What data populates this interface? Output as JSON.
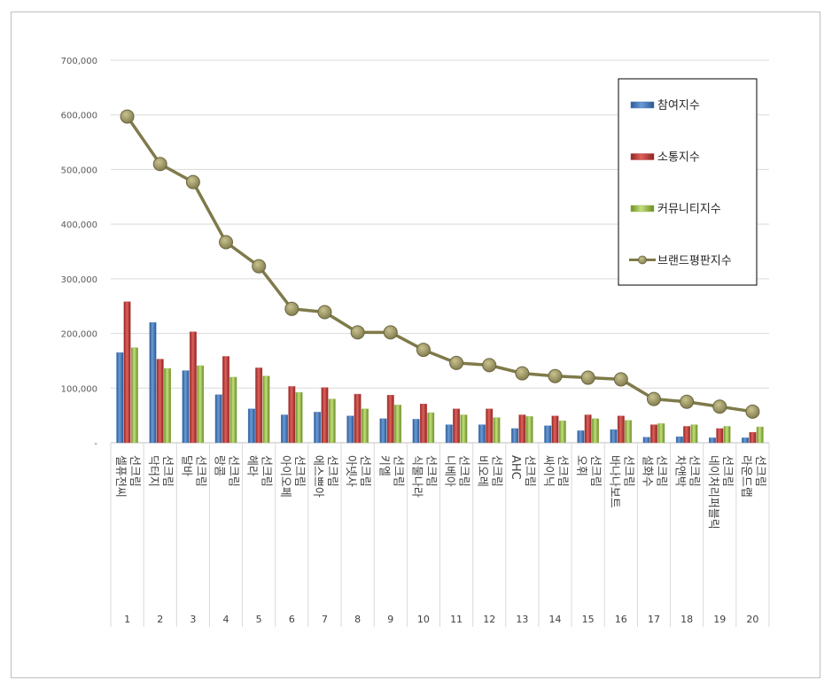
{
  "chart_data": {
    "type": "bar",
    "ylim": [
      0,
      700000
    ],
    "y_ticks": [
      "-",
      "100,000",
      "200,000",
      "300,000",
      "400,000",
      "500,000",
      "600,000",
      "700,000"
    ],
    "grid": true,
    "legend_position": "top-right",
    "categories": [
      {
        "rank": "1",
        "name": "셀퓨전씨 선크림"
      },
      {
        "rank": "2",
        "name": "닥터지 선크림"
      },
      {
        "rank": "3",
        "name": "달바 선크림"
      },
      {
        "rank": "4",
        "name": "랑콤 선크림"
      },
      {
        "rank": "5",
        "name": "헤라 선크림"
      },
      {
        "rank": "6",
        "name": "아이오페 선크림"
      },
      {
        "rank": "7",
        "name": "에스쁘아 선크림"
      },
      {
        "rank": "8",
        "name": "아넷사 선크림"
      },
      {
        "rank": "9",
        "name": "키엘 선크림"
      },
      {
        "rank": "10",
        "name": "식물나라 선크림"
      },
      {
        "rank": "11",
        "name": "니베아 선크림"
      },
      {
        "rank": "12",
        "name": "비오레 선크림"
      },
      {
        "rank": "13",
        "name": "AHC 선크림"
      },
      {
        "rank": "14",
        "name": "싸이닉 선크림"
      },
      {
        "rank": "15",
        "name": "오휘 선크림"
      },
      {
        "rank": "16",
        "name": "바나나보트 선크림"
      },
      {
        "rank": "17",
        "name": "설화수 선크림"
      },
      {
        "rank": "18",
        "name": "차앤박 선크림"
      },
      {
        "rank": "19",
        "name": "네이처리퍼블릭 선크림"
      },
      {
        "rank": "20",
        "name": "라운드랩 선크림"
      }
    ],
    "series": [
      {
        "name": "참여지수",
        "kind": "bar",
        "color": "#4f81bd",
        "values": [
          165000,
          220000,
          132000,
          88000,
          62000,
          51000,
          56000,
          49000,
          44000,
          43000,
          33000,
          33000,
          26000,
          31000,
          22000,
          24000,
          10000,
          11000,
          9000,
          9000
        ]
      },
      {
        "name": "소통지수",
        "kind": "bar",
        "color": "#c0504d",
        "values": [
          258000,
          153000,
          203000,
          158000,
          137000,
          103000,
          101000,
          89000,
          87000,
          71000,
          62000,
          62000,
          51000,
          49000,
          51000,
          49000,
          33000,
          30000,
          26000,
          19000
        ]
      },
      {
        "name": "커뮤니티지수",
        "kind": "bar",
        "color": "#9bbb59",
        "values": [
          174000,
          136000,
          141000,
          120000,
          122000,
          92000,
          80000,
          62000,
          69000,
          55000,
          51000,
          46000,
          48000,
          40000,
          44000,
          41000,
          35000,
          33000,
          30000,
          29000
        ]
      },
      {
        "name": "브랜드평판지수",
        "kind": "line",
        "color": "#7f7a4a",
        "values": [
          597000,
          510000,
          477000,
          367000,
          323000,
          245000,
          239000,
          202000,
          202000,
          170000,
          146000,
          142000,
          127000,
          122000,
          119000,
          116000,
          80000,
          75000,
          66000,
          57000
        ]
      }
    ]
  }
}
